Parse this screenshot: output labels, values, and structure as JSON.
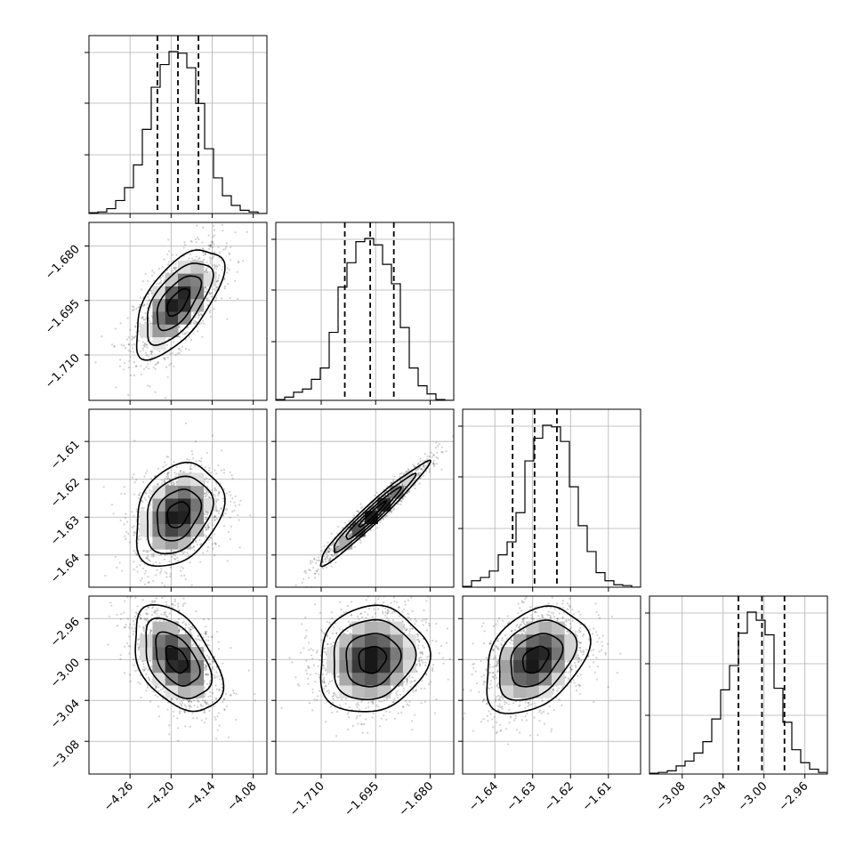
{
  "chart_data": {
    "type": "corner",
    "parameters": [
      {
        "index": 0,
        "range": [
          -4.32,
          -4.06
        ],
        "ticks": [
          -4.26,
          -4.2,
          -4.14,
          -4.08
        ],
        "tick_labels": [
          "−4.26",
          "−4.20",
          "−4.14",
          "−4.08"
        ],
        "quantiles": [
          -4.22,
          -4.19,
          -4.16
        ]
      },
      {
        "index": 1,
        "range": [
          -1.7225,
          -1.6735
        ],
        "ticks": [
          -1.71,
          -1.695,
          -1.68
        ],
        "tick_labels": [
          "−1.710",
          "−1.695",
          "−1.680"
        ],
        "quantiles": [
          -1.7035,
          -1.6965,
          -1.69
        ]
      },
      {
        "index": 2,
        "range": [
          -1.6485,
          -1.6015
        ],
        "ticks": [
          -1.64,
          -1.63,
          -1.62,
          -1.61
        ],
        "tick_labels": [
          "−1.64",
          "−1.63",
          "−1.62",
          "−1.61"
        ],
        "quantiles": [
          -1.6353,
          -1.6295,
          -1.6236
        ]
      },
      {
        "index": 3,
        "range": [
          -3.112,
          -2.938
        ],
        "ticks": [
          -3.08,
          -3.04,
          -3.0,
          -2.96
        ],
        "tick_labels": [
          "−3.08",
          "−3.04",
          "−3.00",
          "−2.96"
        ],
        "quantiles": [
          -3.025,
          -3.002,
          -2.98
        ]
      }
    ],
    "marginals": [
      [
        0.005,
        0.01,
        0.03,
        0.08,
        0.16,
        0.3,
        0.52,
        0.78,
        0.92,
        1.0,
        0.99,
        0.9,
        0.68,
        0.4,
        0.22,
        0.11,
        0.05,
        0.02,
        0.01,
        0.0
      ],
      [
        0.005,
        0.02,
        0.05,
        0.07,
        0.13,
        0.2,
        0.42,
        0.7,
        0.85,
        0.98,
        1.0,
        0.96,
        0.84,
        0.72,
        0.45,
        0.2,
        0.09,
        0.04,
        0.005,
        0.0
      ],
      [
        0.005,
        0.04,
        0.06,
        0.1,
        0.2,
        0.28,
        0.46,
        0.78,
        0.92,
        1.0,
        0.99,
        0.9,
        0.62,
        0.38,
        0.22,
        0.09,
        0.04,
        0.015,
        0.01,
        0.0
      ],
      [
        0.005,
        0.01,
        0.02,
        0.05,
        0.08,
        0.13,
        0.2,
        0.34,
        0.52,
        0.67,
        0.87,
        1.0,
        0.95,
        0.86,
        0.53,
        0.32,
        0.15,
        0.07,
        0.03,
        0.01
      ]
    ],
    "joint": [
      {
        "x": 0,
        "y": 1,
        "center": [
          -4.19,
          -1.6955
        ],
        "sd": [
          0.032,
          0.0075
        ],
        "rho": 0.62
      },
      {
        "x": 0,
        "y": 2,
        "center": [
          -4.19,
          -1.6293
        ],
        "sd": [
          0.032,
          0.0068
        ],
        "rho": 0.28
      },
      {
        "x": 1,
        "y": 2,
        "center": [
          -1.696,
          -1.6293
        ],
        "sd": [
          0.0075,
          0.0068
        ],
        "rho": 0.97
      },
      {
        "x": 0,
        "y": 3,
        "center": [
          -4.192,
          -3.0
        ],
        "sd": [
          0.032,
          0.026
        ],
        "rho": -0.45
      },
      {
        "x": 1,
        "y": 3,
        "center": [
          -1.696,
          -3.0
        ],
        "sd": [
          0.0075,
          0.026
        ],
        "rho": 0.1
      },
      {
        "x": 2,
        "y": 3,
        "center": [
          -1.6293,
          -3.0
        ],
        "sd": [
          0.0068,
          0.026
        ],
        "rho": 0.35
      }
    ],
    "contour_levels_sigma": [
      0.5,
      1.0,
      1.5,
      2.0
    ],
    "grid": true,
    "xlabel": "",
    "ylabel": "",
    "title": ""
  }
}
